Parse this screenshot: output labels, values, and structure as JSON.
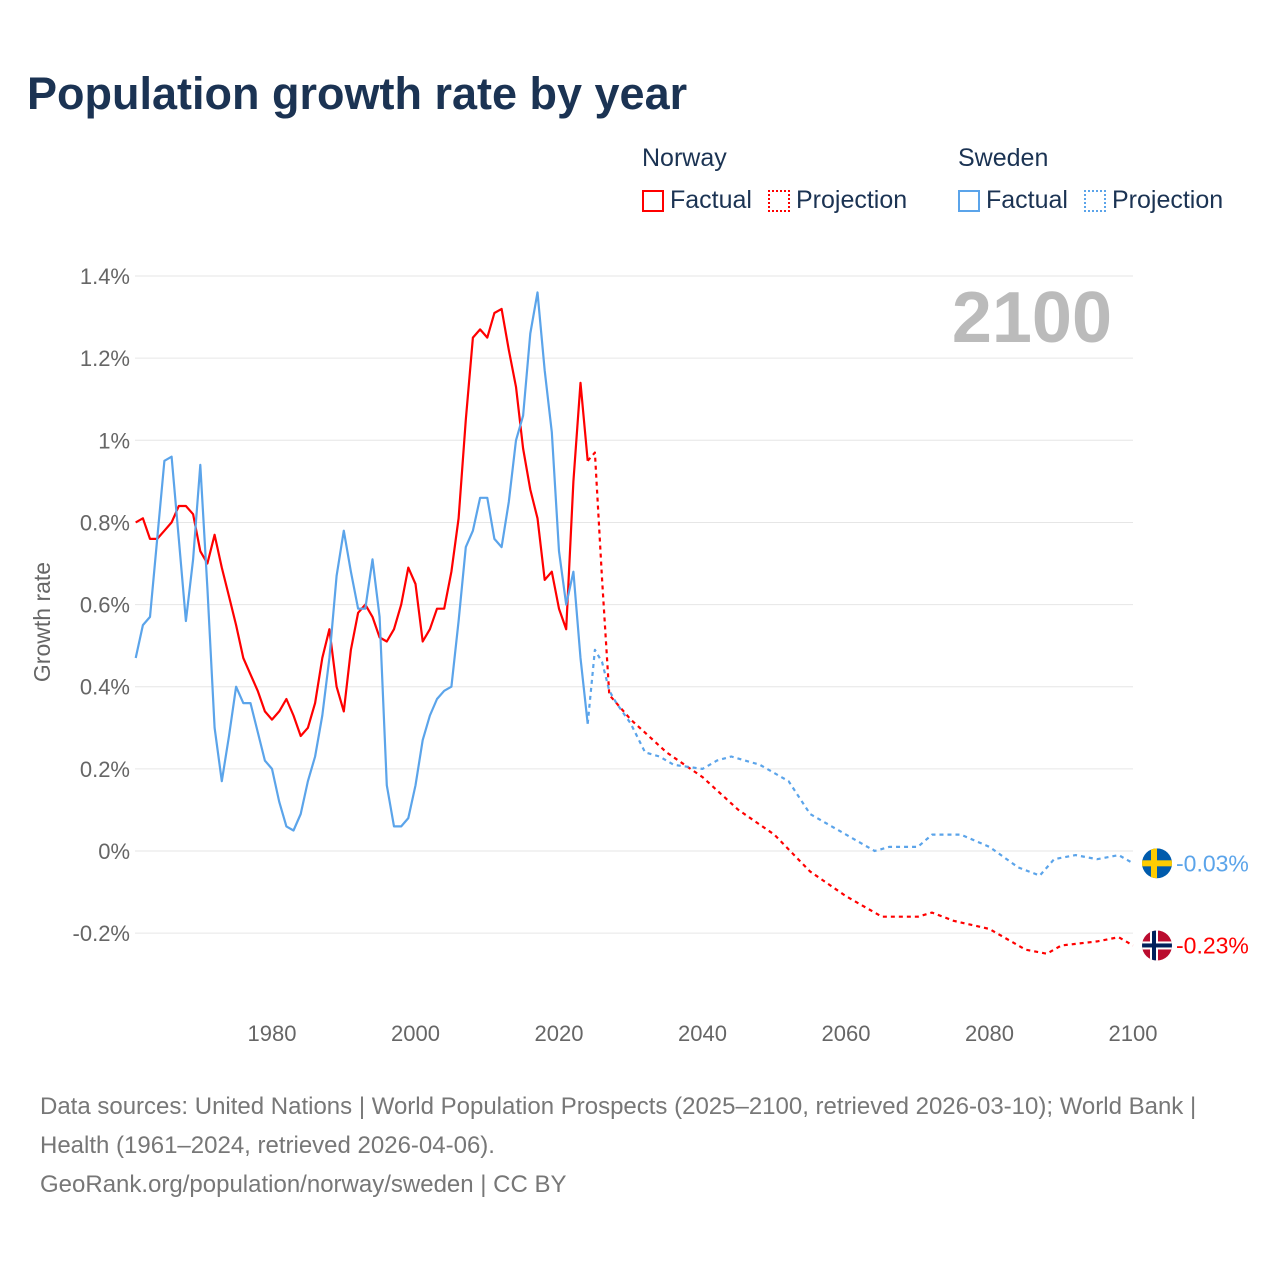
{
  "title": "Population growth rate by year",
  "legend": {
    "groups": [
      {
        "name": "Norway",
        "color": "#ff0000",
        "items": [
          "Factual",
          "Projection"
        ]
      },
      {
        "name": "Sweden",
        "color": "#5ba4ea",
        "items": [
          "Factual",
          "Projection"
        ]
      }
    ]
  },
  "year_badge": "2100",
  "footer": {
    "line1": "Data sources: United Nations | World Population Prospects (2025–2100, retrieved 2026-03-10); World Bank | Health (1961–2024, retrieved 2026-04-06).",
    "line2": "GeoRank.org/population/norway/sweden | CC BY"
  },
  "chart_data": {
    "type": "line",
    "title": "Population growth rate by year",
    "xlabel": "",
    "ylabel": "Growth rate",
    "xlim": [
      1961,
      2100
    ],
    "ylim": [
      -0.3,
      1.45
    ],
    "x_ticks": [
      1980,
      2000,
      2020,
      2040,
      2060,
      2080,
      2100
    ],
    "y_ticks": [
      {
        "value": 1.4,
        "label": "1.4%"
      },
      {
        "value": 1.2,
        "label": "1.2%"
      },
      {
        "value": 1.0,
        "label": "1%"
      },
      {
        "value": 0.8,
        "label": "0.8%"
      },
      {
        "value": 0.6,
        "label": "0.6%"
      },
      {
        "value": 0.4,
        "label": "0.4%"
      },
      {
        "value": 0.2,
        "label": "0.2%"
      },
      {
        "value": 0,
        "label": "0%"
      },
      {
        "value": -0.2,
        "label": "-0.2%"
      }
    ],
    "grid": true,
    "legend_position": "top-right",
    "series": [
      {
        "name": "Norway Factual",
        "color": "#ff0000",
        "dashed": false,
        "x": [
          1961,
          1962,
          1963,
          1964,
          1965,
          1966,
          1967,
          1968,
          1969,
          1970,
          1971,
          1972,
          1973,
          1974,
          1975,
          1976,
          1977,
          1978,
          1979,
          1980,
          1981,
          1982,
          1983,
          1984,
          1985,
          1986,
          1987,
          1988,
          1989,
          1990,
          1991,
          1992,
          1993,
          1994,
          1995,
          1996,
          1997,
          1998,
          1999,
          2000,
          2001,
          2002,
          2003,
          2004,
          2005,
          2006,
          2007,
          2008,
          2009,
          2010,
          2011,
          2012,
          2013,
          2014,
          2015,
          2016,
          2017,
          2018,
          2019,
          2020,
          2021,
          2022,
          2023,
          2024
        ],
        "y": [
          0.8,
          0.81,
          0.76,
          0.76,
          0.78,
          0.8,
          0.84,
          0.84,
          0.82,
          0.73,
          0.7,
          0.77,
          0.69,
          0.62,
          0.55,
          0.47,
          0.43,
          0.39,
          0.34,
          0.32,
          0.34,
          0.37,
          0.33,
          0.28,
          0.3,
          0.36,
          0.47,
          0.54,
          0.4,
          0.34,
          0.49,
          0.58,
          0.6,
          0.57,
          0.52,
          0.51,
          0.54,
          0.6,
          0.69,
          0.65,
          0.51,
          0.54,
          0.59,
          0.59,
          0.68,
          0.81,
          1.05,
          1.25,
          1.27,
          1.25,
          1.31,
          1.32,
          1.22,
          1.13,
          0.98,
          0.88,
          0.81,
          0.66,
          0.68,
          0.59,
          0.54,
          0.9,
          1.14,
          0.95
        ]
      },
      {
        "name": "Norway Projection",
        "color": "#ff0000",
        "dashed": true,
        "x": [
          2024,
          2025,
          2026,
          2027,
          2030,
          2035,
          2040,
          2045,
          2050,
          2055,
          2060,
          2065,
          2070,
          2072,
          2075,
          2080,
          2085,
          2088,
          2090,
          2095,
          2098,
          2100
        ],
        "y": [
          0.95,
          0.97,
          0.66,
          0.38,
          0.32,
          0.24,
          0.18,
          0.1,
          0.04,
          -0.05,
          -0.11,
          -0.16,
          -0.16,
          -0.15,
          -0.17,
          -0.19,
          -0.24,
          -0.25,
          -0.23,
          -0.22,
          -0.21,
          -0.23
        ],
        "end_label": "-0.23%"
      },
      {
        "name": "Sweden Factual",
        "color": "#5ba4ea",
        "dashed": false,
        "x": [
          1961,
          1962,
          1963,
          1964,
          1965,
          1966,
          1967,
          1968,
          1969,
          1970,
          1971,
          1972,
          1973,
          1974,
          1975,
          1976,
          1977,
          1978,
          1979,
          1980,
          1981,
          1982,
          1983,
          1984,
          1985,
          1986,
          1987,
          1988,
          1989,
          1990,
          1991,
          1992,
          1993,
          1994,
          1995,
          1996,
          1997,
          1998,
          1999,
          2000,
          2001,
          2002,
          2003,
          2004,
          2005,
          2006,
          2007,
          2008,
          2009,
          2010,
          2011,
          2012,
          2013,
          2014,
          2015,
          2016,
          2017,
          2018,
          2019,
          2020,
          2021,
          2022,
          2023,
          2024
        ],
        "y": [
          0.47,
          0.55,
          0.57,
          0.76,
          0.95,
          0.96,
          0.76,
          0.56,
          0.71,
          0.94,
          0.64,
          0.3,
          0.17,
          0.28,
          0.4,
          0.36,
          0.36,
          0.29,
          0.22,
          0.2,
          0.12,
          0.06,
          0.05,
          0.09,
          0.17,
          0.23,
          0.33,
          0.47,
          0.67,
          0.78,
          0.68,
          0.59,
          0.59,
          0.71,
          0.57,
          0.16,
          0.06,
          0.06,
          0.08,
          0.16,
          0.27,
          0.33,
          0.37,
          0.39,
          0.4,
          0.56,
          0.74,
          0.78,
          0.86,
          0.86,
          0.76,
          0.74,
          0.85,
          1.0,
          1.06,
          1.26,
          1.36,
          1.17,
          1.02,
          0.73,
          0.6,
          0.68,
          0.47,
          0.31
        ]
      },
      {
        "name": "Sweden Projection",
        "color": "#5ba4ea",
        "dashed": true,
        "x": [
          2024,
          2025,
          2026,
          2027,
          2028,
          2030,
          2032,
          2034,
          2036,
          2040,
          2042,
          2044,
          2048,
          2052,
          2055,
          2058,
          2062,
          2064,
          2066,
          2070,
          2072,
          2076,
          2080,
          2084,
          2087,
          2089,
          2092,
          2095,
          2098,
          2100
        ],
        "y": [
          0.31,
          0.49,
          0.46,
          0.39,
          0.36,
          0.31,
          0.24,
          0.23,
          0.21,
          0.2,
          0.22,
          0.23,
          0.21,
          0.17,
          0.09,
          0.06,
          0.02,
          0.0,
          0.01,
          0.01,
          0.04,
          0.04,
          0.01,
          -0.04,
          -0.06,
          -0.02,
          -0.01,
          -0.02,
          -0.01,
          -0.03
        ],
        "end_label": "-0.03%"
      }
    ]
  }
}
